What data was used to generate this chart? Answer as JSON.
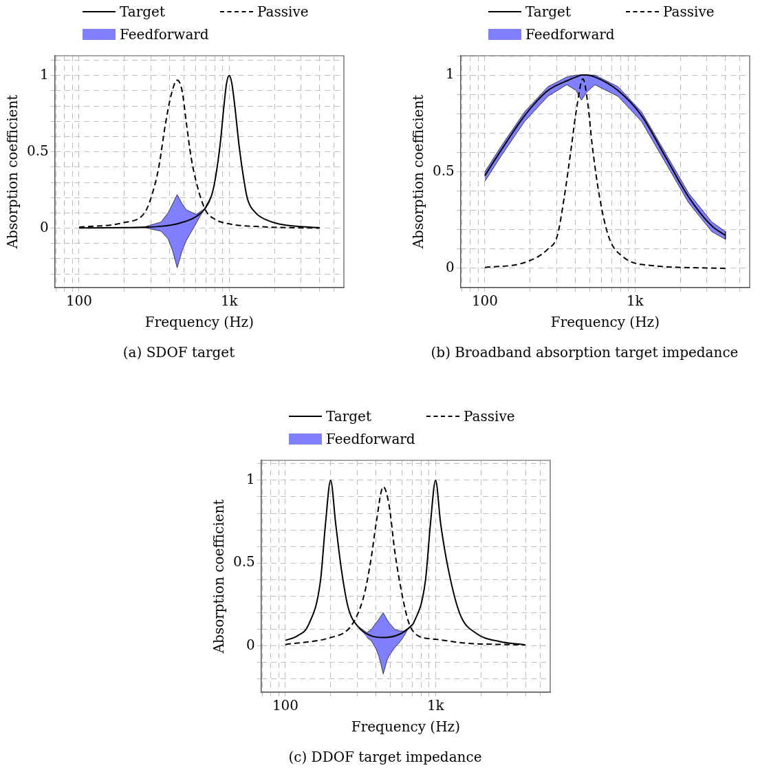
{
  "chart_data": [
    {
      "type": "line",
      "title": "(a) SDOF target",
      "xlabel": "Frequency (Hz)",
      "ylabel": "Absorption coefficient",
      "log": "x",
      "grid": true,
      "legend": "top",
      "marker": "none",
      "xlim": [
        69,
        5800
      ],
      "ylim": [
        -0.39,
        1.13
      ],
      "xticks": [
        {
          "value": 70,
          "label": null
        },
        {
          "value": 80,
          "label": null
        },
        {
          "value": 90,
          "label": null
        },
        {
          "value": 100,
          "label": "100"
        },
        {
          "value": 200,
          "label": null
        },
        {
          "value": 300,
          "label": null
        },
        {
          "value": 400,
          "label": null
        },
        {
          "value": 500,
          "label": null
        },
        {
          "value": 600,
          "label": null
        },
        {
          "value": 700,
          "label": null
        },
        {
          "value": 800,
          "label": null
        },
        {
          "value": 900,
          "label": null
        },
        {
          "value": 1000,
          "label": "1k"
        },
        {
          "value": 2000,
          "label": null
        },
        {
          "value": 3000,
          "label": null
        },
        {
          "value": 4000,
          "label": null
        },
        {
          "value": 5000,
          "label": null
        }
      ],
      "yticks": [
        {
          "value": -0.3,
          "label": null
        },
        {
          "value": -0.2,
          "label": null
        },
        {
          "value": -0.1,
          "label": null
        },
        0,
        {
          "value": 0.1,
          "label": null
        },
        {
          "value": 0.2,
          "label": null
        },
        {
          "value": 0.3,
          "label": null
        },
        {
          "value": 0.4,
          "label": null
        },
        0.5,
        {
          "value": 0.6,
          "label": null
        },
        {
          "value": 0.7,
          "label": null
        },
        {
          "value": 0.8,
          "label": null
        },
        {
          "value": 0.9,
          "label": null
        },
        1,
        {
          "value": 1.1,
          "label": null
        }
      ],
      "series": [
        {
          "name": "Target",
          "type": "line",
          "color": "#000000",
          "line_style": "solid",
          "x": [
            100,
            200,
            273,
            350,
            450,
            558,
            611,
            693,
            760,
            803,
            870,
            924,
            960,
            1000,
            1040,
            1086,
            1160,
            1250,
            1324,
            1500,
            1640,
            2000,
            2350,
            3000,
            4000
          ],
          "values": [
            0.001,
            0.003,
            0.006,
            0.012,
            0.028,
            0.058,
            0.08,
            0.13,
            0.21,
            0.31,
            0.55,
            0.81,
            0.95,
            1,
            0.95,
            0.81,
            0.55,
            0.32,
            0.19,
            0.1,
            0.07,
            0.035,
            0.02,
            0.01,
            0.003
          ]
        },
        {
          "name": "Passive",
          "type": "line",
          "color": "#000000",
          "line_style": "dashed",
          "x": [
            100,
            198,
            273,
            304,
            338,
            377,
            412,
            450,
            485,
            518,
            558,
            611,
            693,
            803,
            1000,
            1640,
            4000
          ],
          "values": [
            0.006,
            0.036,
            0.1,
            0.21,
            0.39,
            0.69,
            0.88,
            0.97,
            0.9,
            0.69,
            0.46,
            0.28,
            0.12,
            0.058,
            0.028,
            0.009,
            0
          ]
        },
        {
          "name": "Feedforward",
          "type": "area",
          "color": "#8080ff",
          "x": [
            100,
            191,
            273,
            351,
            391,
            420,
            450,
            485,
            518,
            601,
            693,
            760,
            601,
            518,
            485,
            450,
            420,
            391,
            351,
            273,
            191
          ],
          "values": [
            0.001,
            0.003,
            0.008,
            0.04,
            0.1,
            0.16,
            0.22,
            0.16,
            0.12,
            0.09,
            0.13,
            0.21,
            0.03,
            -0.08,
            -0.15,
            -0.26,
            -0.15,
            -0.07,
            -0.02,
            0.004,
            0.003
          ]
        }
      ]
    },
    {
      "type": "line",
      "title": "(b) Broadband absorption target impedance",
      "xlabel": "Frequency (Hz)",
      "ylabel": "Absorption coefficient",
      "log": "x",
      "grid": true,
      "legend": "top",
      "marker": "none",
      "xlim": [
        69,
        5800
      ],
      "ylim": [
        -0.1,
        1.1
      ],
      "xticks": [
        {
          "value": 70,
          "label": null
        },
        {
          "value": 80,
          "label": null
        },
        {
          "value": 90,
          "label": null
        },
        {
          "value": 100,
          "label": "100"
        },
        {
          "value": 200,
          "label": null
        },
        {
          "value": 300,
          "label": null
        },
        {
          "value": 400,
          "label": null
        },
        {
          "value": 500,
          "label": null
        },
        {
          "value": 600,
          "label": null
        },
        {
          "value": 700,
          "label": null
        },
        {
          "value": 800,
          "label": null
        },
        {
          "value": 900,
          "label": null
        },
        {
          "value": 1000,
          "label": "1k"
        },
        {
          "value": 2000,
          "label": null
        },
        {
          "value": 3000,
          "label": null
        },
        {
          "value": 4000,
          "label": null
        },
        {
          "value": 5000,
          "label": null
        }
      ],
      "yticks": [
        0,
        {
          "value": 0.1,
          "label": null
        },
        {
          "value": 0.2,
          "label": null
        },
        {
          "value": 0.3,
          "label": null
        },
        {
          "value": 0.4,
          "label": null
        },
        0.5,
        {
          "value": 0.6,
          "label": null
        },
        {
          "value": 0.7,
          "label": null
        },
        {
          "value": 0.8,
          "label": null
        },
        {
          "value": 0.9,
          "label": null
        },
        1,
        {
          "value": 1.1,
          "label": null
        }
      ],
      "series": [
        {
          "name": "Target",
          "type": "line",
          "color": "#000000",
          "line_style": "solid",
          "x": [
            100,
            128,
            184,
            263,
            351,
            405,
            440,
            475,
            540,
            770,
            1105,
            1585,
            2270,
            3240,
            4000
          ],
          "values": [
            0.48,
            0.61,
            0.79,
            0.92,
            0.97,
            0.99,
            1,
            1,
            0.99,
            0.92,
            0.79,
            0.58,
            0.37,
            0.22,
            0.17
          ]
        },
        {
          "name": "Passive",
          "type": "line",
          "color": "#000000",
          "line_style": "dashed",
          "x": [
            100,
            184,
            263,
            304,
            338,
            377,
            405,
            450,
            485,
            518,
            580,
            670,
            830,
            1105,
            4000
          ],
          "values": [
            0.004,
            0.03,
            0.1,
            0.17,
            0.37,
            0.63,
            0.81,
            0.98,
            0.85,
            0.64,
            0.37,
            0.16,
            0.06,
            0.02,
            0
          ]
        },
        {
          "name": "Feedforward",
          "type": "area",
          "color": "#8080ff",
          "x": [
            100,
            128,
            184,
            263,
            351,
            405,
            440,
            475,
            540,
            770,
            1105,
            1585,
            2270,
            3240,
            4000,
            4000,
            3240,
            2270,
            1585,
            1105,
            770,
            540,
            475,
            440,
            405,
            351,
            263,
            184,
            128,
            100
          ],
          "values": [
            0.5,
            0.63,
            0.81,
            0.94,
            0.99,
            1,
            1,
            1,
            1,
            0.94,
            0.81,
            0.6,
            0.39,
            0.24,
            0.19,
            0.15,
            0.19,
            0.34,
            0.55,
            0.76,
            0.89,
            0.95,
            0.91,
            0.87,
            0.92,
            0.95,
            0.89,
            0.76,
            0.58,
            0.45
          ]
        }
      ]
    },
    {
      "type": "line",
      "title": "(c) DDOF target impedance",
      "xlabel": "Frequency (Hz)",
      "ylabel": "Absorption coefficient",
      "log": "x",
      "grid": true,
      "legend": "top",
      "marker": "none",
      "xlim": [
        69,
        5800
      ],
      "ylim": [
        -0.28,
        1.12
      ],
      "xticks": [
        {
          "value": 70,
          "label": null
        },
        {
          "value": 80,
          "label": null
        },
        {
          "value": 90,
          "label": null
        },
        {
          "value": 100,
          "label": "100"
        },
        {
          "value": 200,
          "label": null
        },
        {
          "value": 300,
          "label": null
        },
        {
          "value": 400,
          "label": null
        },
        {
          "value": 500,
          "label": null
        },
        {
          "value": 600,
          "label": null
        },
        {
          "value": 700,
          "label": null
        },
        {
          "value": 800,
          "label": null
        },
        {
          "value": 900,
          "label": null
        },
        {
          "value": 1000,
          "label": "1k"
        },
        {
          "value": 2000,
          "label": null
        },
        {
          "value": 3000,
          "label": null
        },
        {
          "value": 4000,
          "label": null
        },
        {
          "value": 5000,
          "label": null
        }
      ],
      "yticks": [
        {
          "value": -0.2,
          "label": null
        },
        {
          "value": -0.1,
          "label": null
        },
        0,
        {
          "value": 0.1,
          "label": null
        },
        {
          "value": 0.2,
          "label": null
        },
        {
          "value": 0.3,
          "label": null
        },
        {
          "value": 0.4,
          "label": null
        },
        0.5,
        {
          "value": 0.6,
          "label": null
        },
        {
          "value": 0.7,
          "label": null
        },
        {
          "value": 0.8,
          "label": null
        },
        {
          "value": 0.9,
          "label": null
        },
        1,
        {
          "value": 1.1,
          "label": null
        }
      ],
      "series": [
        {
          "name": "Target",
          "type": "line",
          "color": "#000000",
          "line_style": "solid",
          "x": [
            100,
            120,
            143,
            171,
            185,
            200,
            216,
            236,
            262,
            302,
            374,
            448,
            575,
            686,
            715,
            855,
            925,
            1000,
            1080,
            1217,
            1456,
            1868,
            2667,
            3950
          ],
          "values": [
            0.033,
            0.06,
            0.13,
            0.39,
            0.74,
            1,
            0.74,
            0.46,
            0.23,
            0.12,
            0.06,
            0.05,
            0.07,
            0.12,
            0.14,
            0.39,
            0.74,
            1,
            0.74,
            0.46,
            0.19,
            0.075,
            0.026,
            0.006
          ]
        },
        {
          "name": "Passive",
          "type": "line",
          "color": "#000000",
          "line_style": "dashed",
          "x": [
            100,
            200,
            262,
            302,
            337,
            374,
            402,
            448,
            490,
            535,
            598,
            663,
            766,
            1000,
            1560,
            3950
          ],
          "values": [
            0.008,
            0.05,
            0.1,
            0.19,
            0.32,
            0.54,
            0.74,
            0.96,
            0.85,
            0.57,
            0.31,
            0.14,
            0.06,
            0.04,
            0.017,
            0.006
          ]
        },
        {
          "name": "Feedforward",
          "type": "area",
          "color": "#8080ff",
          "x": [
            302,
            349,
            374,
            402,
            418,
            432,
            448,
            474,
            490,
            535,
            575,
            617,
            663,
            617,
            575,
            535,
            490,
            474,
            448,
            432,
            418,
            402,
            374,
            349
          ],
          "values": [
            0.12,
            0.08,
            0.1,
            0.14,
            0.16,
            0.18,
            0.2,
            0.16,
            0.14,
            0.1,
            0.09,
            0.09,
            0.11,
            0.06,
            0.02,
            -0.01,
            -0.06,
            -0.09,
            -0.17,
            -0.11,
            -0.06,
            -0.02,
            0.03,
            0.05
          ]
        }
      ]
    }
  ]
}
